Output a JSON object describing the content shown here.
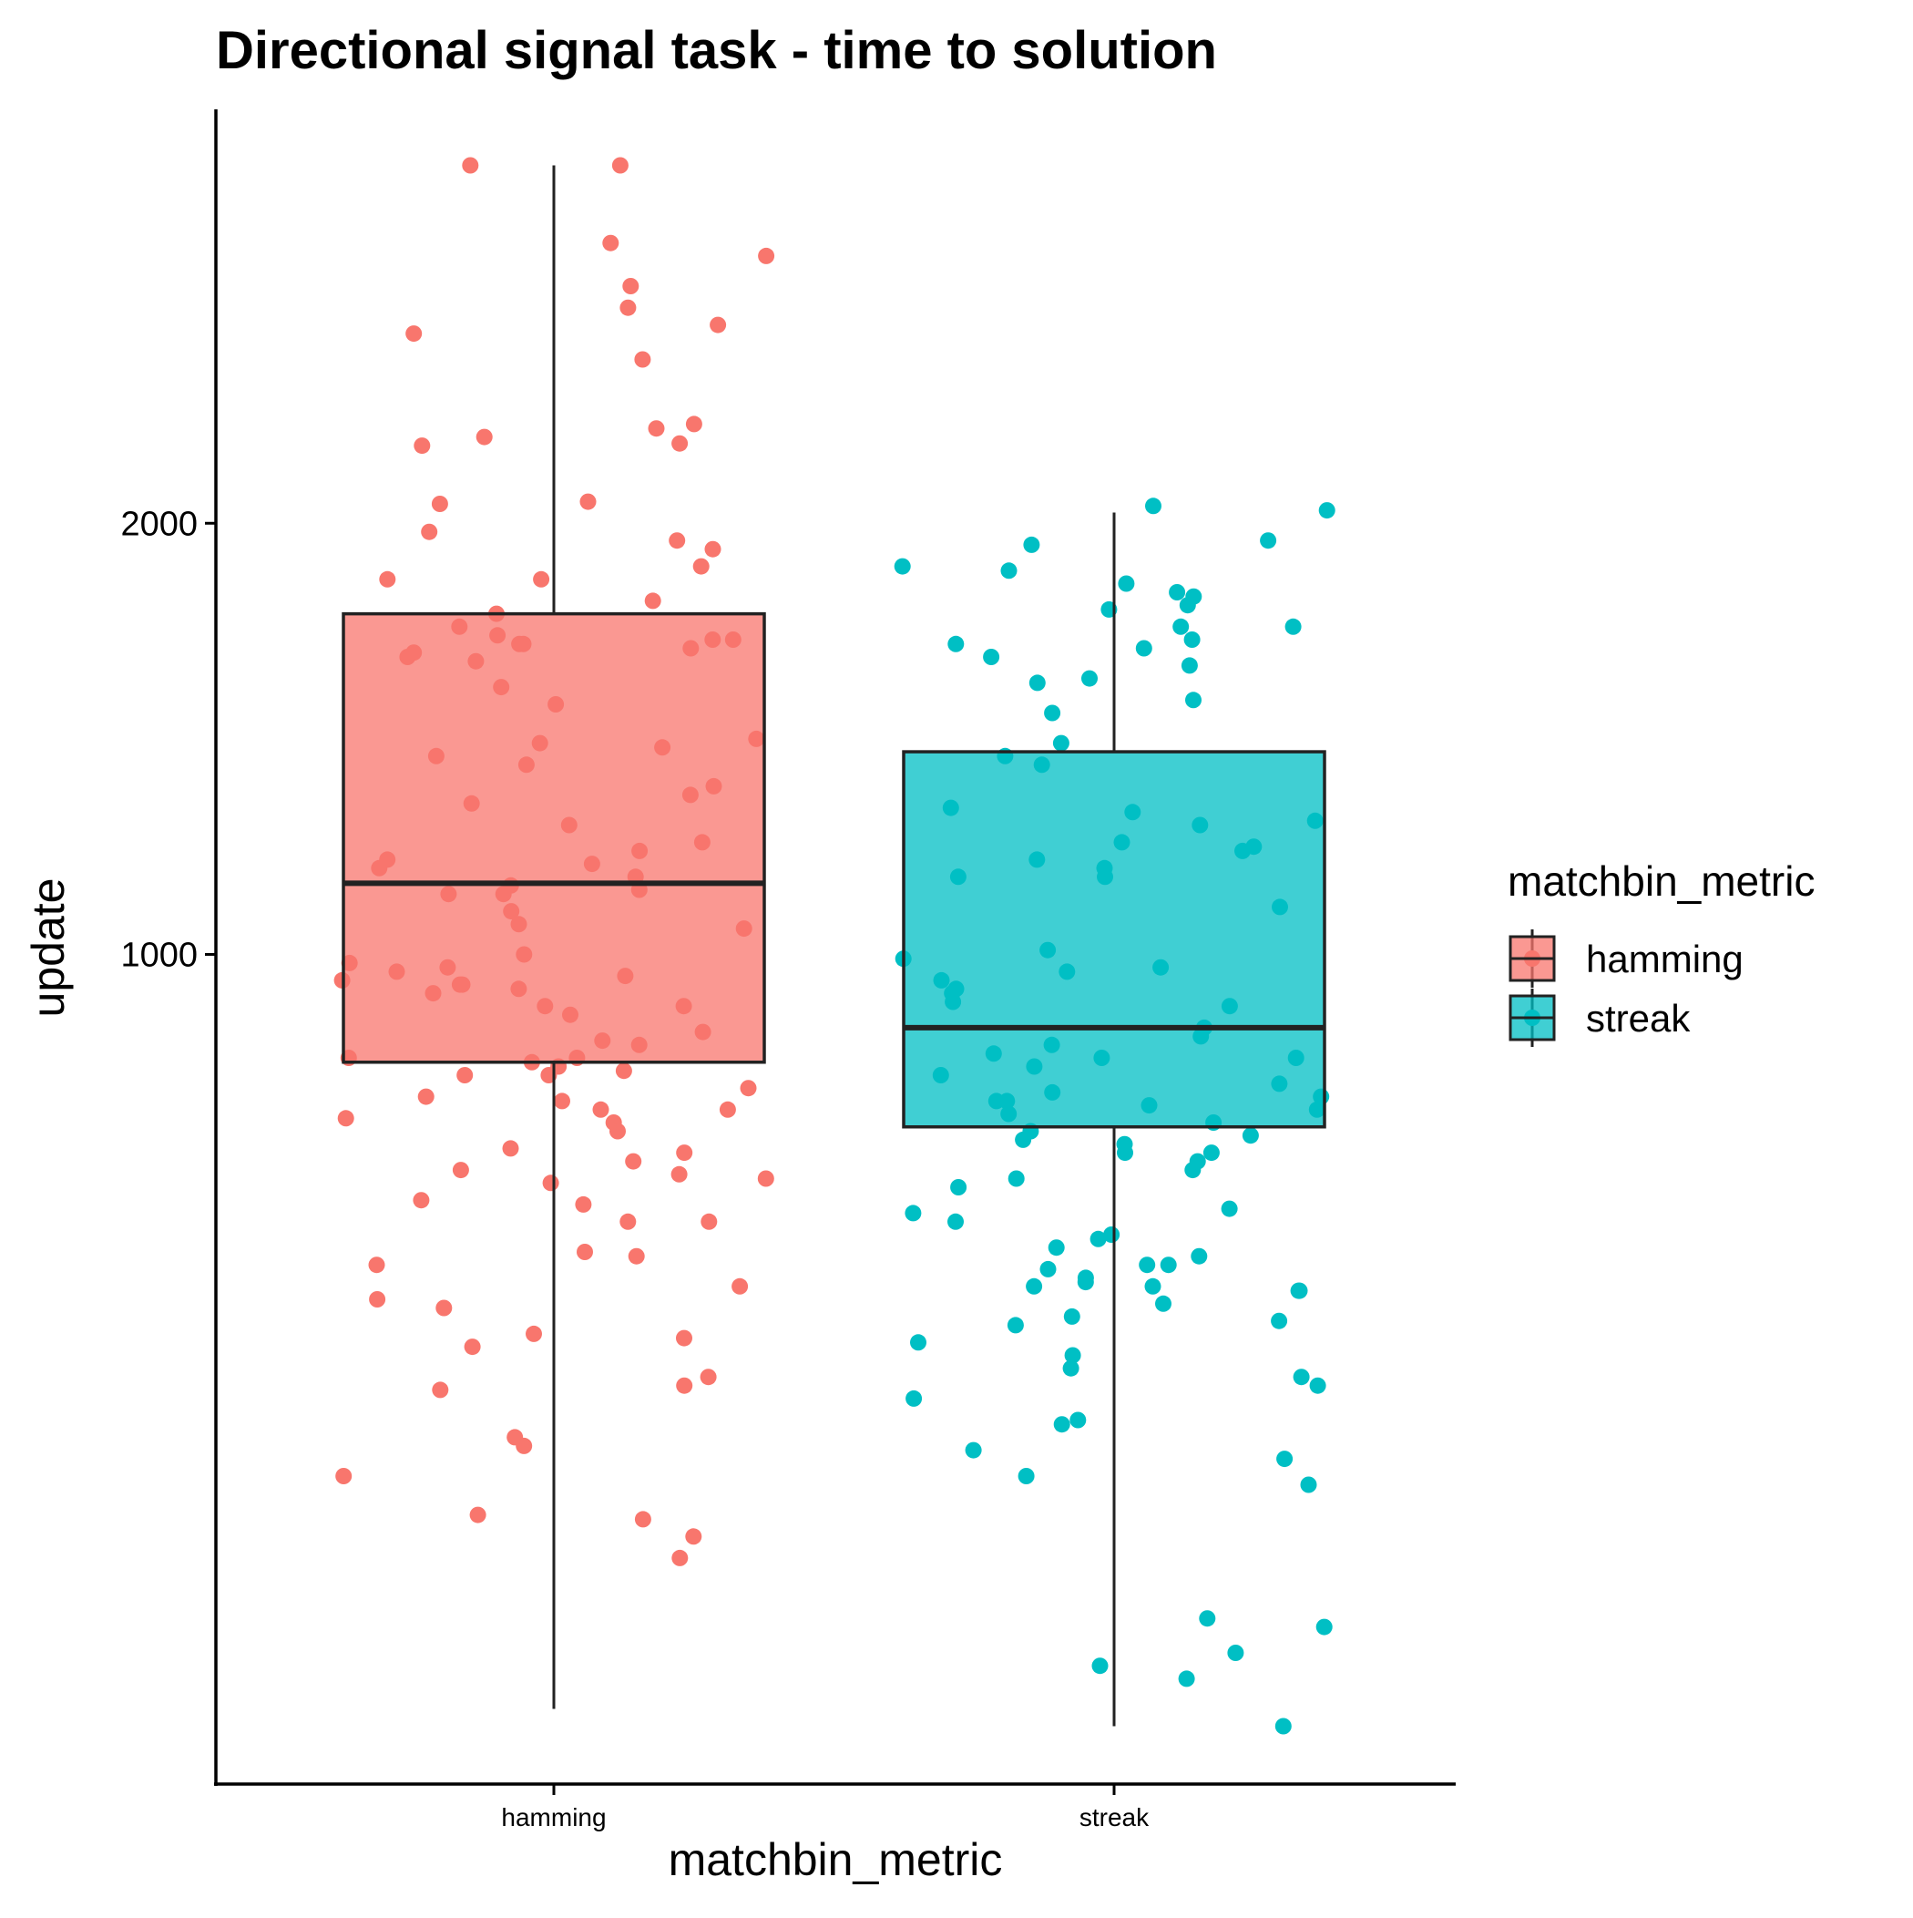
{
  "chart_data": {
    "type": "boxplot",
    "title": "Directional signal task - time to solution",
    "xlabel": "matchbin_metric",
    "ylabel": "update",
    "categories": [
      "hamming",
      "streak"
    ],
    "ylim": [
      -920,
      2960
    ],
    "yticks": [
      1000,
      2000
    ],
    "grid": false,
    "legend": {
      "title": "matchbin_metric",
      "position": "right",
      "entries": [
        "hamming",
        "streak"
      ]
    },
    "colors": {
      "hamming": "#F8766D",
      "streak": "#00BFC4"
    },
    "boxes": [
      {
        "category": "hamming",
        "whisker_low": -750,
        "q1": 750,
        "median": 1165,
        "q3": 1790,
        "whisker_high": 2830
      },
      {
        "category": "streak",
        "whisker_low": -790,
        "q1": 600,
        "median": 830,
        "q3": 1470,
        "whisker_high": 2025
      }
    ],
    "points": [
      {
        "category": "hamming",
        "values": [
          2830,
          2830,
          2650,
          2620,
          2550,
          2500,
          2440,
          2460,
          2380,
          2230,
          2220,
          2200,
          2185,
          2180,
          2050,
          2045,
          1980,
          1960,
          1940,
          1900,
          1870,
          1870,
          1820,
          1790,
          1760,
          1740,
          1730,
          1730,
          1720,
          1720,
          1710,
          1700,
          1690,
          1680,
          1620,
          1580,
          1500,
          1490,
          1480,
          1460,
          1440,
          1390,
          1370,
          1350,
          1300,
          1260,
          1240,
          1220,
          1210,
          1200,
          1180,
          1160,
          1150,
          1140,
          1140,
          1100,
          1070,
          1060,
          1000,
          980,
          970,
          960,
          950,
          940,
          930,
          930,
          920,
          910,
          880,
          880,
          860,
          820,
          800,
          790,
          760,
          760,
          750,
          740,
          730,
          720,
          720,
          690,
          670,
          660,
          640,
          640,
          620,
          610,
          590,
          550,
          540,
          520,
          500,
          490,
          480,
          470,
          430,
          420,
          380,
          380,
          310,
          300,
          280,
          230,
          200,
          180,
          120,
          110,
          90,
          20,
          -10,
          0,
          -120,
          -140,
          -210,
          -300,
          -310,
          -350,
          -400
        ]
      },
      {
        "category": "streak",
        "values": [
          2030,
          2040,
          1960,
          1950,
          1900,
          1890,
          1860,
          1840,
          1830,
          1810,
          1800,
          1760,
          1760,
          1730,
          1720,
          1710,
          1690,
          1670,
          1640,
          1630,
          1590,
          1560,
          1490,
          1460,
          1440,
          1340,
          1330,
          1310,
          1300,
          1260,
          1250,
          1240,
          1220,
          1200,
          1180,
          1180,
          1110,
          1010,
          990,
          970,
          960,
          940,
          920,
          910,
          890,
          880,
          830,
          810,
          790,
          770,
          760,
          760,
          740,
          720,
          700,
          680,
          670,
          660,
          660,
          650,
          640,
          630,
          610,
          590,
          580,
          570,
          560,
          540,
          540,
          520,
          500,
          480,
          460,
          410,
          400,
          380,
          350,
          340,
          320,
          300,
          280,
          280,
          270,
          250,
          240,
          230,
          230,
          220,
          220,
          190,
          160,
          150,
          140,
          100,
          70,
          40,
          20,
          0,
          -30,
          -80,
          -90,
          -150,
          -170,
          -210,
          -230,
          -540,
          -560,
          -620,
          -650,
          -680,
          -790
        ]
      }
    ]
  }
}
